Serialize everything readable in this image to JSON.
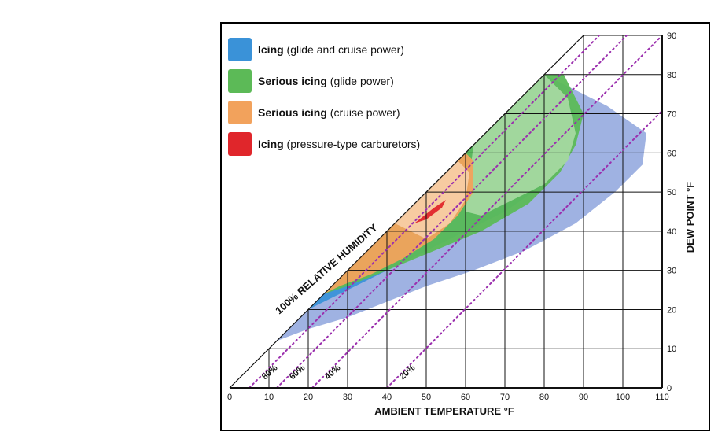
{
  "chart_data": {
    "type": "area",
    "title": "",
    "xlabel": "AMBIENT TEMPERATURE  °F",
    "ylabel": "DEW POINT  °F",
    "xlim": [
      0,
      110
    ],
    "ylim": [
      0,
      90
    ],
    "x_ticks": [
      "0",
      "10",
      "20",
      "30",
      "40",
      "50",
      "60",
      "70",
      "80",
      "90",
      "100",
      "110"
    ],
    "y_ticks": [
      "0",
      "10",
      "20",
      "30",
      "40",
      "50",
      "60",
      "70",
      "80",
      "90"
    ],
    "grid": true,
    "legend_position": "top-left",
    "legend": [
      {
        "bold": "Icing",
        "text": " (glide and cruise power)",
        "color": "#3a92d8"
      },
      {
        "bold": "Serious icing",
        "text": " (glide power)",
        "color": "#5cba57"
      },
      {
        "bold": "Serious icing",
        "text": " (cruise power)",
        "color": "#f2a25c"
      },
      {
        "bold": "Icing",
        "text": " (pressure-type carburetors)",
        "color": "#e0262b"
      }
    ],
    "saturation_line_label": "100% RELATIVE HUMIDITY",
    "humidity_lines": [
      {
        "label": "80%",
        "x": [
          5,
          94
        ]
      },
      {
        "label": "60%",
        "x": [
          12,
          102
        ]
      },
      {
        "label": "40%",
        "x": [
          21,
          110
        ]
      },
      {
        "label": "20%",
        "x": [
          40,
          110
        ]
      }
    ],
    "regions": [
      {
        "name": "Icing (glide and cruise power) light",
        "color": "#9aaee0",
        "points": [
          [
            80,
            80
          ],
          [
            96,
            72
          ],
          [
            106,
            65
          ],
          [
            105,
            57
          ],
          [
            98,
            50
          ],
          [
            88,
            42
          ],
          [
            75,
            35
          ],
          [
            62,
            30
          ],
          [
            50,
            26
          ],
          [
            40,
            22
          ],
          [
            30,
            18
          ],
          [
            20,
            15
          ],
          [
            12,
            12
          ],
          [
            12,
            12
          ]
        ]
      },
      {
        "name": "Icing (glide and cruise power)",
        "color": "#3a92d8",
        "points": [
          [
            10,
            10
          ],
          [
            20,
            20
          ],
          [
            30,
            30
          ],
          [
            40,
            40
          ],
          [
            50,
            50
          ],
          [
            60,
            60
          ],
          [
            70,
            70
          ],
          [
            80,
            80
          ],
          [
            80,
            80
          ],
          [
            88,
            70
          ],
          [
            86,
            60
          ],
          [
            80,
            52
          ],
          [
            70,
            45
          ],
          [
            60,
            40
          ],
          [
            50,
            35
          ],
          [
            40,
            30
          ],
          [
            30,
            25
          ],
          [
            20,
            20
          ],
          [
            12,
            12
          ]
        ]
      },
      {
        "name": "Serious icing (glide power) dark",
        "color": "#5cba57",
        "points": [
          [
            24,
            24
          ],
          [
            30,
            30
          ],
          [
            40,
            40
          ],
          [
            50,
            50
          ],
          [
            60,
            60
          ],
          [
            70,
            70
          ],
          [
            80,
            80
          ],
          [
            85,
            80
          ],
          [
            90,
            70
          ],
          [
            88,
            62
          ],
          [
            84,
            55
          ],
          [
            76,
            47
          ],
          [
            64,
            40
          ],
          [
            52,
            35
          ],
          [
            40,
            30
          ],
          [
            30,
            26
          ]
        ]
      },
      {
        "name": "Serious icing (glide power) light",
        "color": "#a5d8a0",
        "points": [
          [
            62,
            62
          ],
          [
            70,
            70
          ],
          [
            80,
            80
          ],
          [
            86,
            74
          ],
          [
            88,
            65
          ],
          [
            86,
            58
          ],
          [
            80,
            52
          ],
          [
            72,
            48
          ],
          [
            64,
            44
          ],
          [
            60,
            45
          ]
        ]
      },
      {
        "name": "Serious icing (cruise power)",
        "color": "#f2a25c",
        "points": [
          [
            24,
            24
          ],
          [
            30,
            30
          ],
          [
            40,
            40
          ],
          [
            50,
            50
          ],
          [
            60,
            60
          ],
          [
            62,
            58
          ],
          [
            62,
            50
          ],
          [
            58,
            44
          ],
          [
            52,
            38
          ],
          [
            44,
            33
          ],
          [
            36,
            29
          ],
          [
            28,
            26
          ]
        ]
      },
      {
        "name": "Serious icing (cruise power) light",
        "color": "#f8cda4",
        "points": [
          [
            42,
            42
          ],
          [
            50,
            50
          ],
          [
            58,
            58
          ],
          [
            61,
            55
          ],
          [
            60,
            48
          ],
          [
            56,
            42
          ],
          [
            50,
            38
          ]
        ]
      },
      {
        "name": "Icing (pressure-type carburetors)",
        "color": "#e0262b",
        "points": [
          [
            47,
            42
          ],
          [
            52,
            46
          ],
          [
            55,
            48
          ],
          [
            54,
            46
          ],
          [
            50,
            43
          ]
        ]
      }
    ]
  }
}
